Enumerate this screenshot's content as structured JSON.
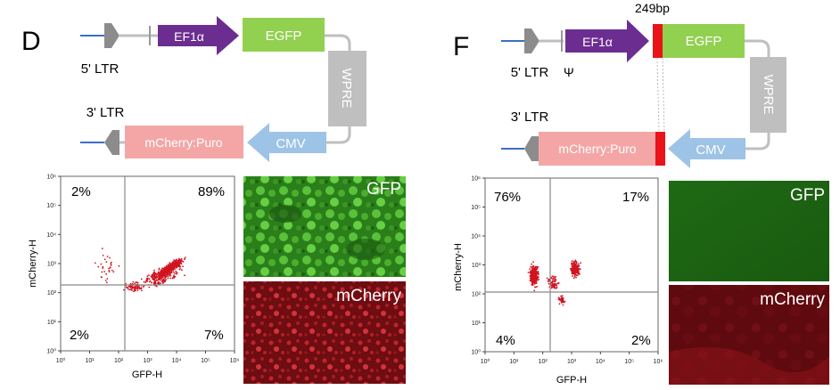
{
  "panel_d": {
    "letter": "D",
    "construct": {
      "ltr5": "5' LTR",
      "ltr3": "3' LTR",
      "promoter": "EF1α",
      "reporter": "EGFP",
      "wpre": "WPRE",
      "cmv": "CMV",
      "selection": "mCherry:Puro"
    },
    "flow": {
      "x_label": "GFP-H",
      "y_label": "mCherry-H",
      "x_ticks": [
        "10⁰",
        "10¹",
        "10²",
        "10³",
        "10⁴",
        "10⁵",
        "10⁶"
      ],
      "y_ticks": [
        "10⁰",
        "10¹",
        "10²",
        "10³",
        "10⁴",
        "10⁵",
        "10⁶"
      ],
      "q_top_left": "2%",
      "q_top_right": "89%",
      "q_bottom_left": "2%",
      "q_bottom_right": "7%"
    },
    "gfp_label": "GFP",
    "mcherry_label": "mCherry"
  },
  "panel_f": {
    "letter": "F",
    "insert_size": "249bp",
    "construct": {
      "ltr5": "5' LTR",
      "psi": "Ψ",
      "ltr3": "3' LTR",
      "promoter": "EF1α",
      "reporter": "EGFP",
      "wpre": "WPRE",
      "cmv": "CMV",
      "selection": "mCherry:Puro"
    },
    "flow": {
      "x_label": "GFP-H",
      "y_label": "mCherry-H",
      "x_ticks": [
        "10⁰",
        "10¹",
        "10²",
        "10³",
        "10⁴",
        "10⁵",
        "10⁶"
      ],
      "y_ticks": [
        "10⁰",
        "10¹",
        "10²",
        "10³",
        "10⁴",
        "10⁵",
        "10⁶"
      ],
      "q_top_left": "76%",
      "q_top_right": "17%",
      "q_bottom_left": "4%",
      "q_bottom_right": "2%"
    },
    "gfp_label": "GFP",
    "mcherry_label": "mCherry"
  },
  "colors": {
    "ef1a": "#6c2d91",
    "egfp": "#92d050",
    "wpre": "#bfbfbf",
    "cmv": "#9dc3e6",
    "mcherry_puro": "#f4a6a6",
    "insert": "#e8141a",
    "ltr": "#8c8c8c",
    "backbone_line": "#3a6fc2",
    "dots": "#d01420",
    "gfp_field": "#2f8a1e",
    "mcherry_field": "#8e1418"
  }
}
